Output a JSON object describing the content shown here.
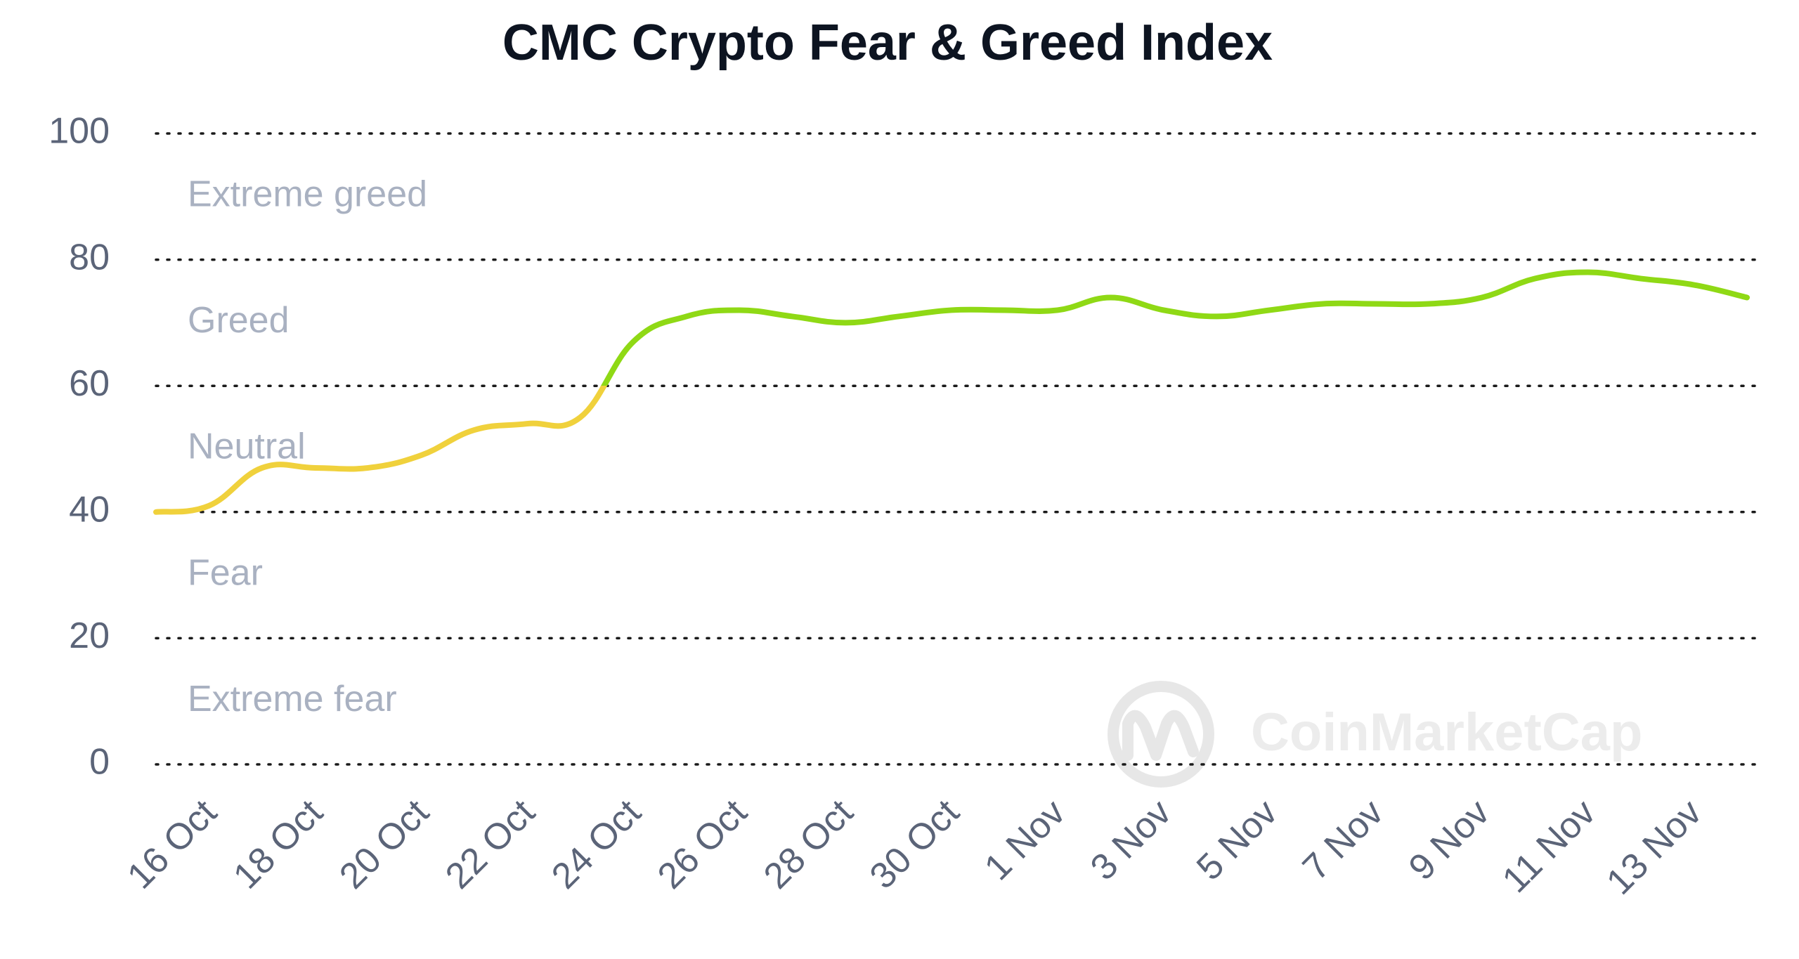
{
  "chart_data": {
    "type": "line",
    "title": "CMC Crypto Fear & Greed Index",
    "categories": [
      null,
      "16 Oct",
      null,
      "18 Oct",
      null,
      "20 Oct",
      null,
      "22 Oct",
      null,
      "24 Oct",
      null,
      "26 Oct",
      null,
      "28 Oct",
      null,
      "30 Oct",
      null,
      "1 Nov",
      null,
      "3 Nov",
      null,
      "5 Nov",
      null,
      "7 Nov",
      null,
      "9 Nov",
      null,
      "11 Nov",
      null,
      "13 Nov",
      null
    ],
    "values": [
      40,
      41,
      47,
      47,
      47,
      49,
      53,
      54,
      55,
      67,
      71,
      72,
      71,
      70,
      71,
      72,
      72,
      72,
      74,
      72,
      71,
      72,
      73,
      73,
      73,
      74,
      77,
      78,
      77,
      76,
      74
    ],
    "ylim": [
      0,
      100
    ],
    "yticks": [
      0,
      20,
      40,
      60,
      80,
      100
    ],
    "grid": true,
    "bands": [
      "Extreme fear",
      "Fear",
      "Neutral",
      "Greed",
      "Extreme greed"
    ],
    "color_threshold": 60,
    "color_below": "#f0d13c",
    "color_above": "#8fd915",
    "watermark": "CoinMarketCap"
  }
}
